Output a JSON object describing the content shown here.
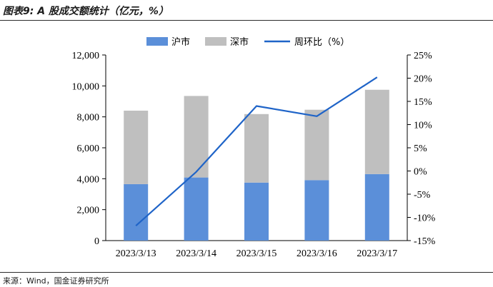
{
  "header": {
    "title": "图表9: A 股成交额统计（亿元，%）"
  },
  "footer": {
    "source": "来源：Wind，国金证券研究所"
  },
  "colors": {
    "sh": "#5b8fd9",
    "sz": "#bfbfbf",
    "wow": "#1f64c8"
  },
  "chart_data": {
    "type": "bar",
    "stacked": true,
    "categories": [
      "2023/3/13",
      "2023/3/14",
      "2023/3/15",
      "2023/3/16",
      "2023/3/17"
    ],
    "series": [
      {
        "name": "沪市",
        "type": "bar",
        "axis": "left",
        "values": [
          3650,
          4080,
          3750,
          3910,
          4300
        ]
      },
      {
        "name": "深市",
        "type": "bar",
        "axis": "left",
        "values": [
          4750,
          5270,
          4430,
          4550,
          5450
        ]
      },
      {
        "name": "周环比（%）",
        "type": "line",
        "axis": "right",
        "values": [
          -11.8,
          -0.2,
          14.0,
          11.8,
          20.2
        ]
      }
    ],
    "y_left": {
      "lim": [
        0,
        12000
      ],
      "ticks": [
        0,
        2000,
        4000,
        6000,
        8000,
        10000,
        12000
      ],
      "tick_labels": [
        "0",
        "2,000",
        "4,000",
        "6,000",
        "8,000",
        "10,000",
        "12,000"
      ]
    },
    "y_right": {
      "lim": [
        -15,
        25
      ],
      "ticks": [
        -15,
        -10,
        -5,
        0,
        5,
        10,
        15,
        20,
        25
      ],
      "tick_labels": [
        "-15%",
        "-10%",
        "-5%",
        "0%",
        "5%",
        "10%",
        "15%",
        "20%",
        "25%"
      ]
    },
    "legend": "top-center",
    "grid": false
  }
}
